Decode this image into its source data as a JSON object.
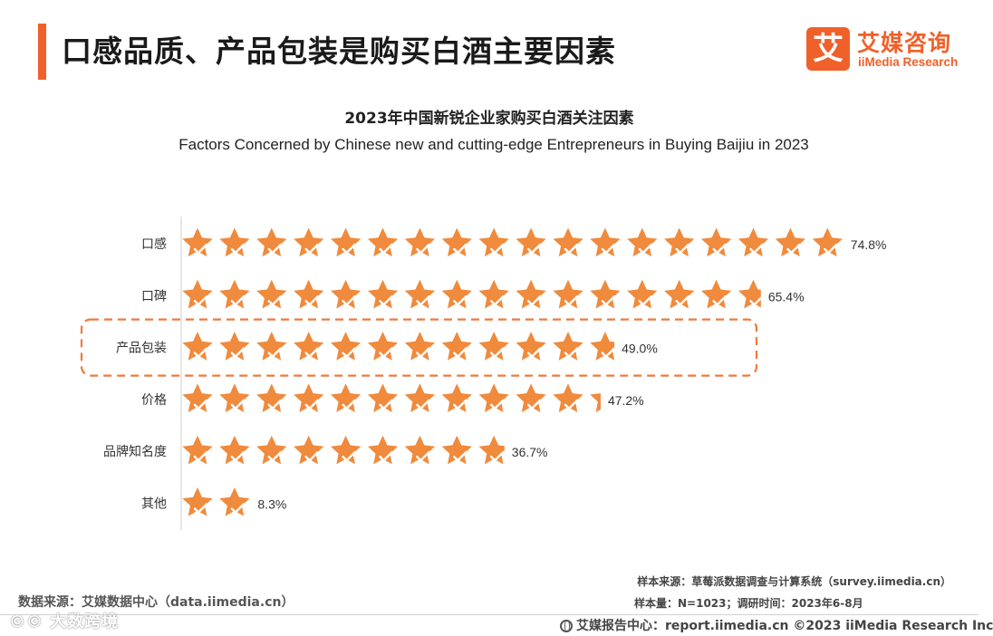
{
  "colors": {
    "accent": "#f0602a",
    "star": "#f08a3c",
    "star_check": "#ffffff",
    "highlight_border": "#ef7a3c"
  },
  "header": {
    "title": "口感品质、产品包装是购买白酒主要因素"
  },
  "logo": {
    "icon_char": "艾",
    "name_cn": "艾媒咨询",
    "name_en": "iiMedia Research"
  },
  "chart_data": {
    "type": "bar",
    "title": "2023年中国新锐企业家购买白酒关注因素",
    "subtitle": "Factors Concerned by Chinese new and cutting-edge Entrepreneurs in Buying Baijiu in 2023",
    "categories": [
      "口感",
      "口碑",
      "产品包装",
      "价格",
      "品牌知名度",
      "其他"
    ],
    "values": [
      74.8,
      65.4,
      49.0,
      47.2,
      36.7,
      8.3
    ],
    "value_labels": [
      "74.8%",
      "65.4%",
      "49.0%",
      "47.2%",
      "36.7%",
      "8.3%"
    ],
    "unit": "%",
    "orientation": "horizontal",
    "mark": "star-icons",
    "highlighted_category": "产品包装",
    "grid": false
  },
  "source": {
    "data_source": "数据来源：艾媒数据中心（data.iimedia.cn）",
    "sample_source": "样本来源：草莓派数据调查与计算系统（survey.iimedia.cn）",
    "sample_size": "样本量：N=1023；调研时间：2023年6-8月"
  },
  "watermark": "©© 大数跨境",
  "footer": {
    "text": "艾媒报告中心：report.iimedia.cn  ©2023  iiMedia Research  Inc",
    "icon": "globe-icon"
  }
}
